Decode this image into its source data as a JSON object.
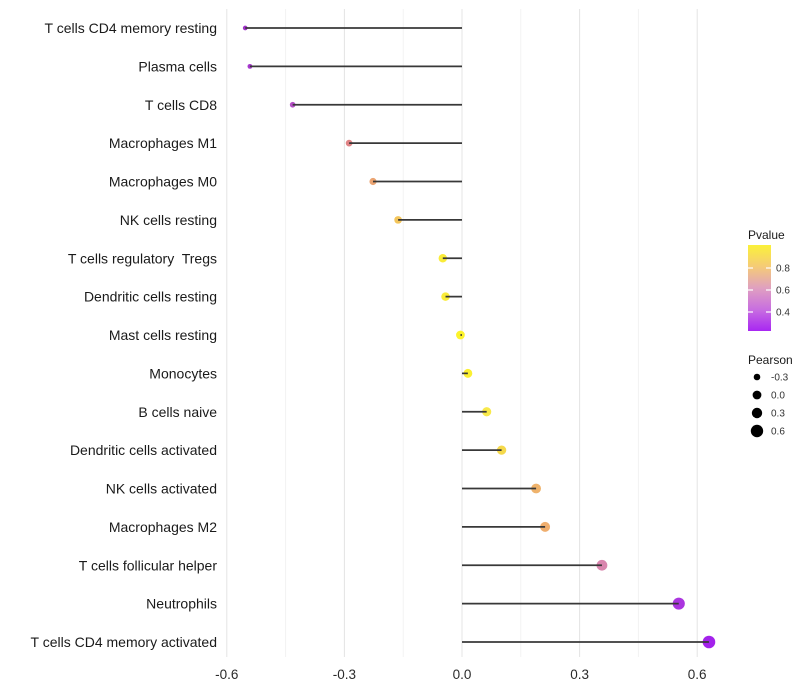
{
  "chart_data": {
    "type": "lollipop",
    "title": "",
    "orientation": "horizontal",
    "categories": [
      "T cells CD4 memory resting",
      "Plasma cells",
      "T cells CD8",
      "Macrophages M1",
      "Macrophages M0",
      "NK cells resting",
      "T cells regulatory  Tregs",
      "Dendritic cells resting",
      "Mast cells resting",
      "Monocytes",
      "B cells naive",
      "Dendritic cells activated",
      "NK cells activated",
      "Macrophages M2",
      "T cells follicular helper",
      "Neutrophils",
      "T cells CD4 memory activated"
    ],
    "series": [
      {
        "name": "Pearson",
        "pearson": [
          -0.553,
          -0.541,
          -0.432,
          -0.288,
          -0.227,
          -0.163,
          -0.049,
          -0.042,
          -0.004,
          0.015,
          0.063,
          0.101,
          0.189,
          0.212,
          0.357,
          0.553,
          0.63
        ],
        "pvalue_est": [
          0.33,
          0.34,
          0.44,
          0.67,
          0.74,
          0.81,
          0.93,
          0.93,
          0.97,
          0.95,
          0.91,
          0.86,
          0.77,
          0.76,
          0.6,
          0.36,
          0.31
        ],
        "dot_colors": [
          "#A032C8",
          "#A637CE",
          "#B44FC5",
          "#E08385",
          "#EBA472",
          "#F3C55B",
          "#FAEC39",
          "#FAEC39",
          "#FCF32B",
          "#FBF031",
          "#F8E94A",
          "#F5D94B",
          "#EFB36C",
          "#EFAE6E",
          "#D986AE",
          "#AB35DF",
          "#A322EB"
        ]
      }
    ],
    "x_axis": {
      "tick_labels": [
        "-0.6",
        "-0.3",
        "0.0",
        "0.3",
        "0.6"
      ],
      "tick_values": [
        -0.6,
        -0.3,
        0.0,
        0.3,
        0.6
      ],
      "minor_tick_values": [
        -0.45,
        -0.15,
        0.15,
        0.45
      ],
      "xlim": [
        -0.64,
        0.685
      ],
      "grid": true
    },
    "legend_pvalue": {
      "title": "Pvalue",
      "tick_labels": [
        "0.8",
        "0.6",
        "0.4"
      ],
      "tick_values": [
        0.8,
        0.6,
        0.4
      ],
      "bar_range_top_to_bottom": [
        1.0,
        0.25
      ],
      "gradient_stops_top_to_bottom": [
        "#FBF139",
        "#F5CB77",
        "#E0A0C0",
        "#C86EE0",
        "#A827F2"
      ]
    },
    "legend_pearson": {
      "title": "Pearson",
      "entries": [
        {
          "label": "-0.3",
          "value": -0.3
        },
        {
          "label": "0.0",
          "value": 0.0
        },
        {
          "label": "0.3",
          "value": 0.3
        },
        {
          "label": "0.6",
          "value": 0.6
        }
      ],
      "dot_color": "#000000"
    },
    "colors": {
      "stem": "#383838",
      "grid_major": "#E4E4E4",
      "grid_minor": "#F1F1F1",
      "background": "#FFFFFF",
      "colorbar_tick": "#FFFFFF"
    }
  }
}
